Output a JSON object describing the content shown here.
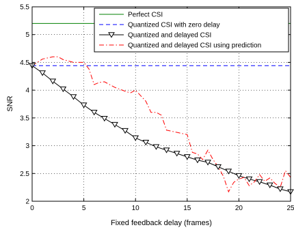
{
  "chart_data": {
    "type": "line",
    "xlabel": "Fixed feedback delay (frames)",
    "ylabel": "SNR",
    "xlim": [
      0,
      25
    ],
    "ylim": [
      2,
      5.5
    ],
    "x_ticks": [
      0,
      5,
      10,
      15,
      20,
      25
    ],
    "y_ticks": [
      2,
      2.5,
      3,
      3.5,
      4,
      4.5,
      5,
      5.5
    ],
    "x_tick_labels": [
      "0",
      "5",
      "10",
      "15",
      "20",
      "25"
    ],
    "y_tick_labels": [
      "2",
      "2.5",
      "3",
      "3.5",
      "4",
      "4.5",
      "5",
      "5.5"
    ],
    "grid": true,
    "legend_position": "top-right",
    "series": [
      {
        "name": "Perfect CSI",
        "color": "#008000",
        "style": "solid",
        "marker": "none",
        "x": [
          0,
          25
        ],
        "y": [
          5.2,
          5.2
        ]
      },
      {
        "name": "Quantized CSI with zero delay",
        "color": "#0000ff",
        "style": "dashed",
        "marker": "none",
        "x": [
          0,
          25
        ],
        "y": [
          4.44,
          4.44
        ]
      },
      {
        "name": "Quantized and delayed CSI",
        "color": "#000000",
        "style": "solid",
        "marker": "triangle-down",
        "x": [
          0,
          1,
          2,
          3,
          4,
          5,
          6,
          7,
          8,
          9,
          10,
          11,
          12,
          13,
          14,
          15,
          16,
          17,
          18,
          19,
          20,
          21,
          22,
          23,
          24,
          25
        ],
        "y": [
          4.44,
          4.31,
          4.16,
          4.02,
          3.88,
          3.73,
          3.6,
          3.49,
          3.38,
          3.27,
          3.14,
          3.06,
          2.98,
          2.92,
          2.86,
          2.8,
          2.74,
          2.7,
          2.62,
          2.54,
          2.46,
          2.4,
          2.35,
          2.29,
          2.22,
          2.17
        ]
      },
      {
        "name": "Quantized and delayed CSI using prediction",
        "color": "#ff0000",
        "style": "dashdot",
        "marker": "none",
        "x": [
          0,
          1,
          2,
          2.5,
          3,
          4,
          5,
          5.5,
          6,
          6.5,
          7,
          8,
          9,
          9.5,
          10,
          10.5,
          11,
          11.5,
          12,
          12.5,
          13,
          14,
          14.5,
          15,
          15.5,
          16,
          16.5,
          17,
          17.5,
          18,
          18.5,
          19,
          19.5,
          20,
          20.5,
          21,
          21.5,
          22,
          22.5,
          23,
          23.5,
          24,
          24.5,
          25
        ],
        "y": [
          4.44,
          4.56,
          4.6,
          4.6,
          4.55,
          4.5,
          4.5,
          4.38,
          4.1,
          4.14,
          4.15,
          4.05,
          3.98,
          3.95,
          4.0,
          3.9,
          3.8,
          3.6,
          3.6,
          3.55,
          3.28,
          3.24,
          3.22,
          3.2,
          2.88,
          2.85,
          2.75,
          2.92,
          2.75,
          2.62,
          2.45,
          2.17,
          2.34,
          2.4,
          2.43,
          2.28,
          2.35,
          2.48,
          2.36,
          2.42,
          2.32,
          2.25,
          2.55,
          2.43
        ]
      }
    ]
  }
}
